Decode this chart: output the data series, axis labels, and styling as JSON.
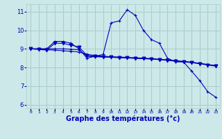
{
  "background_color": "#cce8e8",
  "grid_color": "#aacccc",
  "line_color": "#0000bb",
  "xlabel": "Graphe des températures (°c)",
  "xlabel_fontsize": 7,
  "ylim": [
    5.8,
    11.4
  ],
  "xlim": [
    -0.5,
    23.5
  ],
  "yticks": [
    6,
    7,
    8,
    9,
    10,
    11
  ],
  "xtick_labels": [
    "0",
    "1",
    "2",
    "3",
    "4",
    "5",
    "6",
    "7",
    "8",
    "9",
    "10",
    "11",
    "12",
    "13",
    "14",
    "15",
    "16",
    "17",
    "18",
    "19",
    "20",
    "21",
    "22",
    "23"
  ],
  "series": [
    {
      "x": [
        0,
        1,
        2,
        3,
        4,
        5,
        6,
        7,
        8,
        9,
        10,
        11,
        12,
        13,
        14,
        15,
        16,
        17,
        18,
        19,
        20,
        21,
        22,
        23
      ],
      "y": [
        9.0,
        9.0,
        9.0,
        9.4,
        9.4,
        9.3,
        9.0,
        8.5,
        8.6,
        8.7,
        10.4,
        10.5,
        11.1,
        10.8,
        10.0,
        9.5,
        9.3,
        8.5,
        8.3,
        8.3,
        7.8,
        7.3,
        6.7,
        6.4
      ]
    },
    {
      "x": [
        0,
        1,
        2,
        3,
        4,
        5,
        6,
        7,
        8,
        9,
        10,
        11,
        12,
        13,
        14,
        15,
        16,
        17,
        18,
        19,
        20,
        21,
        22,
        23
      ],
      "y": [
        9.0,
        8.98,
        8.95,
        8.93,
        8.9,
        8.87,
        8.83,
        8.7,
        8.65,
        8.6,
        8.58,
        8.56,
        8.54,
        8.52,
        8.5,
        8.48,
        8.44,
        8.4,
        8.36,
        8.32,
        8.28,
        8.22,
        8.15,
        8.1
      ]
    },
    {
      "x": [
        0,
        1,
        2,
        3,
        4,
        5,
        6,
        7,
        8,
        9,
        10,
        11,
        12,
        13,
        14,
        15,
        16,
        17,
        18,
        19,
        20,
        21,
        22,
        23
      ],
      "y": [
        9.0,
        9.0,
        9.0,
        9.0,
        9.0,
        8.98,
        8.95,
        8.6,
        8.58,
        8.56,
        8.55,
        8.53,
        8.52,
        8.5,
        8.48,
        8.46,
        8.43,
        8.4,
        8.36,
        8.32,
        8.28,
        8.22,
        8.16,
        8.1
      ]
    },
    {
      "x": [
        0,
        1,
        2,
        3,
        4,
        5,
        6,
        7,
        8,
        9,
        10,
        11,
        12,
        13,
        14,
        15,
        16,
        17,
        18,
        19,
        20,
        21,
        22,
        23
      ],
      "y": [
        9.0,
        8.97,
        8.93,
        9.3,
        9.3,
        9.2,
        9.1,
        8.65,
        8.6,
        8.57,
        8.55,
        8.53,
        8.51,
        8.49,
        8.47,
        8.45,
        8.42,
        8.38,
        8.34,
        8.3,
        8.26,
        8.2,
        8.13,
        8.07
      ]
    }
  ]
}
